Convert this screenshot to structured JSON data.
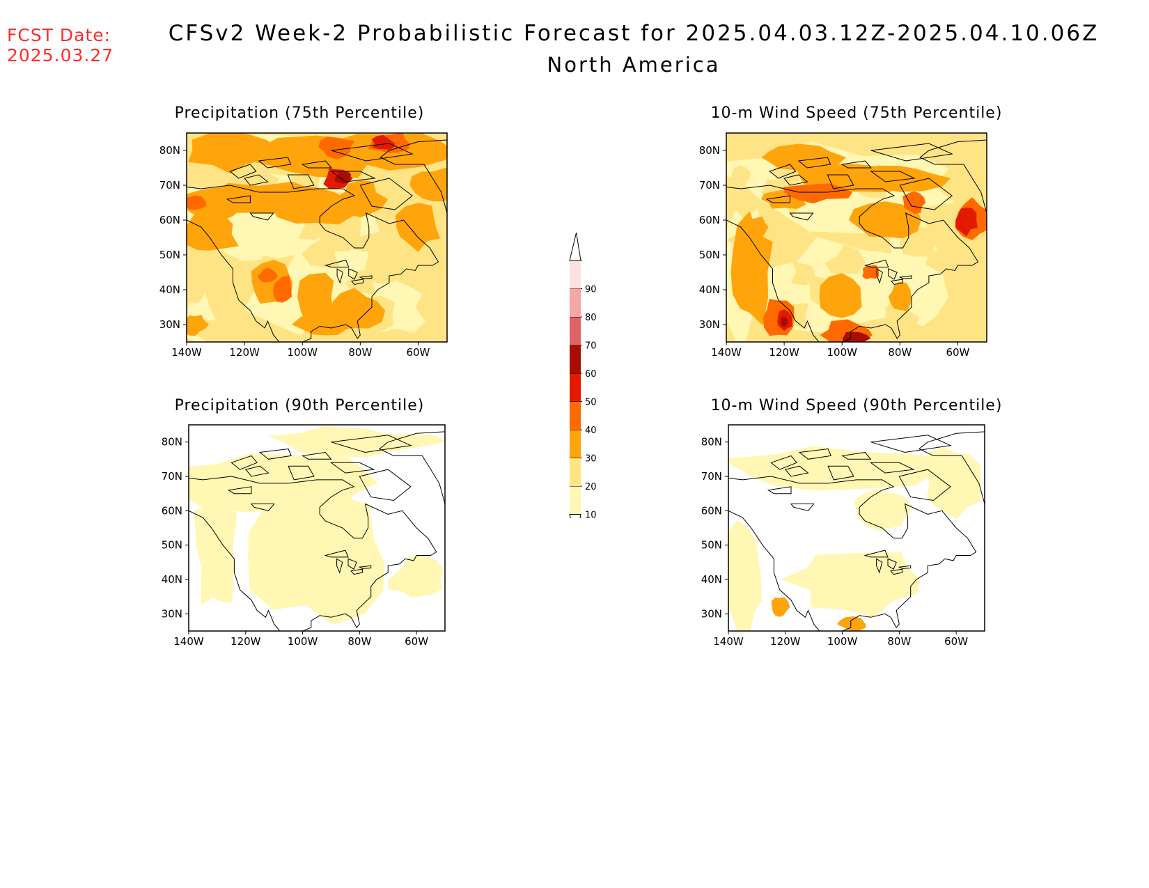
{
  "header": {
    "fcst_label": "FCST Date:",
    "fcst_date": "2025.03.27",
    "title": "CFSv2 Week-2 Probabilistic Forecast for 2025.04.03.12Z-2025.04.10.06Z",
    "subtitle": "North America",
    "fcst_color": "#ff2a2a"
  },
  "axes": {
    "lat_labels": [
      "80N",
      "70N",
      "60N",
      "50N",
      "40N",
      "30N"
    ],
    "lat_values": [
      80,
      70,
      60,
      50,
      40,
      30
    ],
    "lon_labels": [
      "140W",
      "120W",
      "100W",
      "80W",
      "60W"
    ],
    "lon_values": [
      -140,
      -120,
      -100,
      -80,
      -60
    ],
    "lon_range": [
      -140,
      -50
    ],
    "lat_range": [
      25,
      85
    ]
  },
  "panels": [
    {
      "id": "precip75",
      "title": "Precipitation (75th Percentile)"
    },
    {
      "id": "wind75",
      "title": "10-m Wind Speed (75th Percentile)"
    },
    {
      "id": "precip90",
      "title": "Precipitation (90th Percentile)"
    },
    {
      "id": "wind90",
      "title": "10-m Wind Speed (90th Percentile)"
    }
  ],
  "legend": {
    "levels": [
      "10",
      "20",
      "30",
      "40",
      "50",
      "60",
      "70",
      "80",
      "90"
    ],
    "colors": [
      "#fff7b3",
      "#ffe486",
      "#ffa40a",
      "#ff6a00",
      "#e31a00",
      "#a90c00",
      "#dd6565",
      "#f5a6a6",
      "#fde2e2"
    ]
  }
}
